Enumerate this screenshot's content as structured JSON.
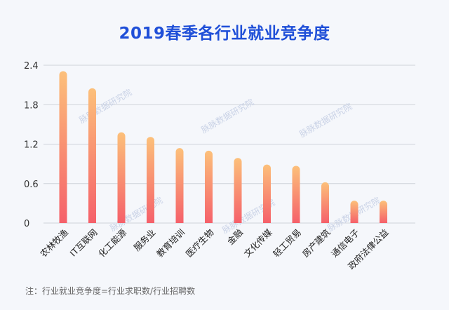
{
  "title": "2019春季各行业就业竞争度",
  "footnote": "注：行业就业竞争度=行业求职数/行业招聘数",
  "watermark": "脉脉数据研究院",
  "colors": {
    "title": "#1f4fd8",
    "bar_top": "#fcc07a",
    "bar_bottom": "#f5606a",
    "grid": "#cfd3da",
    "background": "#f5f7fb"
  },
  "chart_data": {
    "type": "bar",
    "title": "2019春季各行业就业竞争度",
    "xlabel": "",
    "ylabel": "",
    "ylim": [
      0,
      2.4
    ],
    "yticks": [
      "0",
      "0.6",
      "1.2",
      "1.8",
      "2.4"
    ],
    "grid": true,
    "categories": [
      "农林牧渔",
      "IT互联网",
      "化工能源",
      "服务业",
      "教育培训",
      "医疗生物",
      "金融",
      "文化传媒",
      "轻工贸易",
      "房产建筑",
      "通信电子",
      "政府法律公益"
    ],
    "values": [
      2.31,
      2.05,
      1.38,
      1.31,
      1.14,
      1.1,
      0.99,
      0.89,
      0.87,
      0.62,
      0.34,
      0.34
    ]
  }
}
